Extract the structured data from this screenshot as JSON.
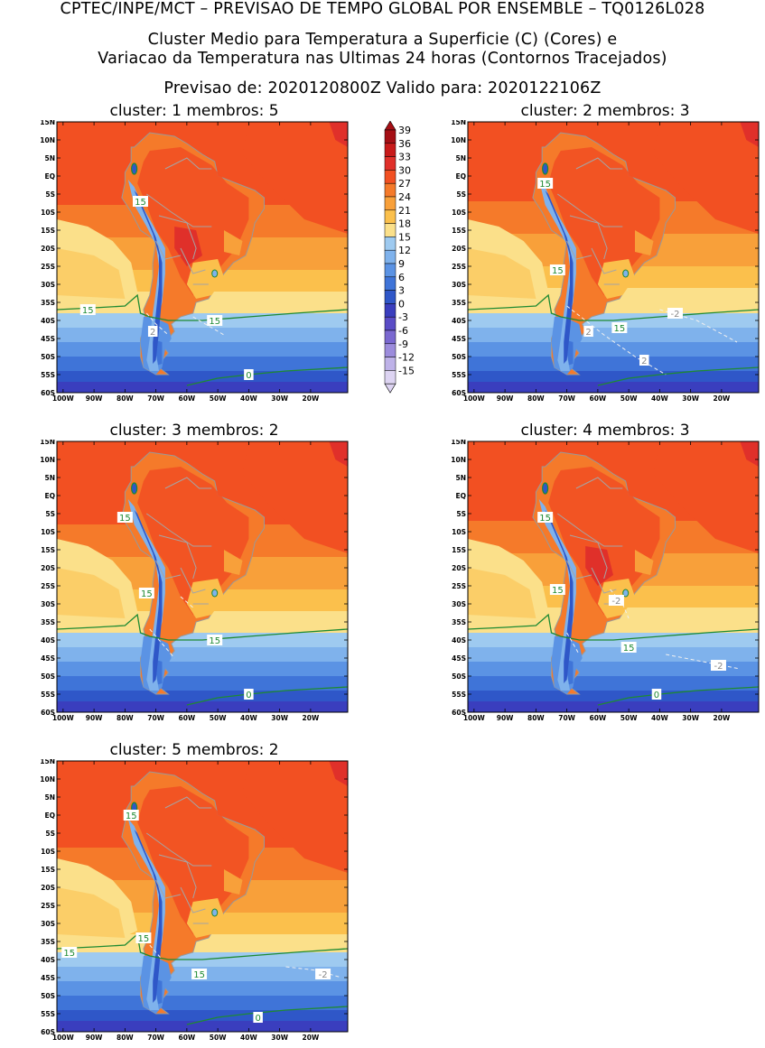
{
  "header": {
    "line1": "CPTEC/INPE/MCT – PREVISAO DE TEMPO GLOBAL POR ENSEMBLE – TQ0126L028",
    "line2": "Cluster Medio para Temperatura a Superficie (C) (Cores) e",
    "line3": "Variacao da Temperatura nas Ultimas 24 horas (Contornos Tracejados)",
    "line4": "Previsao de: 2020120800Z    Valido para: 2020122106Z"
  },
  "axes": {
    "lat_labels": [
      "15N",
      "10N",
      "5N",
      "EQ",
      "5S",
      "10S",
      "15S",
      "20S",
      "25S",
      "30S",
      "35S",
      "40S",
      "45S",
      "50S",
      "55S",
      "60S"
    ],
    "lon_labels": [
      "100W",
      "90W",
      "80W",
      "70W",
      "60W",
      "50W",
      "40W",
      "30W",
      "20W"
    ]
  },
  "colorbar": {
    "labels": [
      "39",
      "36",
      "33",
      "30",
      "27",
      "24",
      "21",
      "18",
      "15",
      "12",
      "9",
      "6",
      "3",
      "0",
      "-3",
      "-6",
      "-9",
      "-12",
      "-15"
    ],
    "colors": [
      "#a50f15",
      "#c81a1a",
      "#e0302a",
      "#f25022",
      "#f57a2a",
      "#f8a03a",
      "#fbc04c",
      "#fbe08a",
      "#9ecaf0",
      "#7fb2ec",
      "#5b93e4",
      "#3f74d8",
      "#2f57c8",
      "#3a3ebe",
      "#5a4cc6",
      "#7a68d0",
      "#9c8cdc",
      "#beb2e8",
      "#ddd4f2"
    ]
  },
  "panels": [
    {
      "title": "cluster: 1   membros: 5",
      "variant": 1,
      "contour_labels": [
        {
          "text": "15",
          "color": "#1e8a32",
          "lon": -75,
          "lat": -7
        },
        {
          "text": "15",
          "color": "#1e8a32",
          "lon": -92,
          "lat": -37
        },
        {
          "text": "15",
          "color": "#1e8a32",
          "lon": -51,
          "lat": -40
        },
        {
          "text": "2",
          "color": "#888888",
          "lon": -71,
          "lat": -43
        },
        {
          "text": "0",
          "color": "#1e8a32",
          "lon": -40,
          "lat": -55
        }
      ]
    },
    {
      "title": "cluster: 2   membros: 3",
      "variant": 2,
      "contour_labels": [
        {
          "text": "15",
          "color": "#1e8a32",
          "lon": -77,
          "lat": -2
        },
        {
          "text": "15",
          "color": "#1e8a32",
          "lon": -73,
          "lat": -26
        },
        {
          "text": "-2",
          "color": "#888888",
          "lon": -35,
          "lat": -38
        },
        {
          "text": "2",
          "color": "#888888",
          "lon": -63,
          "lat": -43
        },
        {
          "text": "15",
          "color": "#1e8a32",
          "lon": -53,
          "lat": -42
        },
        {
          "text": "2",
          "color": "#888888",
          "lon": -45,
          "lat": -51
        }
      ]
    },
    {
      "title": "cluster: 3   membros: 2",
      "variant": 3,
      "contour_labels": [
        {
          "text": "15",
          "color": "#1e8a32",
          "lon": -80,
          "lat": -6
        },
        {
          "text": "15",
          "color": "#1e8a32",
          "lon": -73,
          "lat": -27
        },
        {
          "text": "15",
          "color": "#1e8a32",
          "lon": -51,
          "lat": -40
        },
        {
          "text": "0",
          "color": "#1e8a32",
          "lon": -40,
          "lat": -55
        }
      ]
    },
    {
      "title": "cluster: 4   membros: 3",
      "variant": 4,
      "contour_labels": [
        {
          "text": "15",
          "color": "#1e8a32",
          "lon": -77,
          "lat": -6
        },
        {
          "text": "15",
          "color": "#1e8a32",
          "lon": -73,
          "lat": -26
        },
        {
          "text": "-2",
          "color": "#888888",
          "lon": -54,
          "lat": -29
        },
        {
          "text": "15",
          "color": "#1e8a32",
          "lon": -50,
          "lat": -42
        },
        {
          "text": "-2",
          "color": "#888888",
          "lon": -21,
          "lat": -47
        },
        {
          "text": "0",
          "color": "#1e8a32",
          "lon": -41,
          "lat": -55
        }
      ]
    },
    {
      "title": "cluster: 5   membros: 2",
      "variant": 5,
      "contour_labels": [
        {
          "text": "15",
          "color": "#1e8a32",
          "lon": -78,
          "lat": 0
        },
        {
          "text": "15",
          "color": "#1e8a32",
          "lon": -98,
          "lat": -38
        },
        {
          "text": "15",
          "color": "#1e8a32",
          "lon": -74,
          "lat": -34
        },
        {
          "text": "15",
          "color": "#1e8a32",
          "lon": -56,
          "lat": -44
        },
        {
          "text": "-2",
          "color": "#888888",
          "lon": -16,
          "lat": -44
        },
        {
          "text": "0",
          "color": "#1e8a32",
          "lon": -37,
          "lat": -56
        }
      ]
    }
  ]
}
